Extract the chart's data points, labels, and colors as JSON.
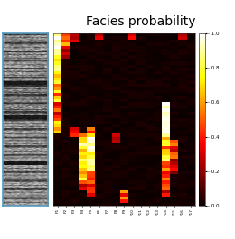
{
  "title": "Facies probability",
  "title_fontsize": 10,
  "x_labels": [
    "F1",
    "F2",
    "F3",
    "F4",
    "F5",
    "F6",
    "F7",
    "F8",
    "F9",
    "F10",
    "F11",
    "F12",
    "F13",
    "F14",
    "F15",
    "F16",
    "F17"
  ],
  "n_rows": 55,
  "n_cols": 17,
  "colormap": "hot",
  "vmin": 0.0,
  "vmax": 1.0,
  "colorbar_ticks": [
    0.0,
    0.2,
    0.4,
    0.6,
    0.8,
    1.0
  ],
  "colorbar_tick_labels": [
    "- 0.0",
    "- 0.2",
    "- 0.4",
    "- 0.6",
    "- 0.8",
    "- 1.0"
  ],
  "background_color": "#ffffff",
  "image_border_color": "#5599bb"
}
